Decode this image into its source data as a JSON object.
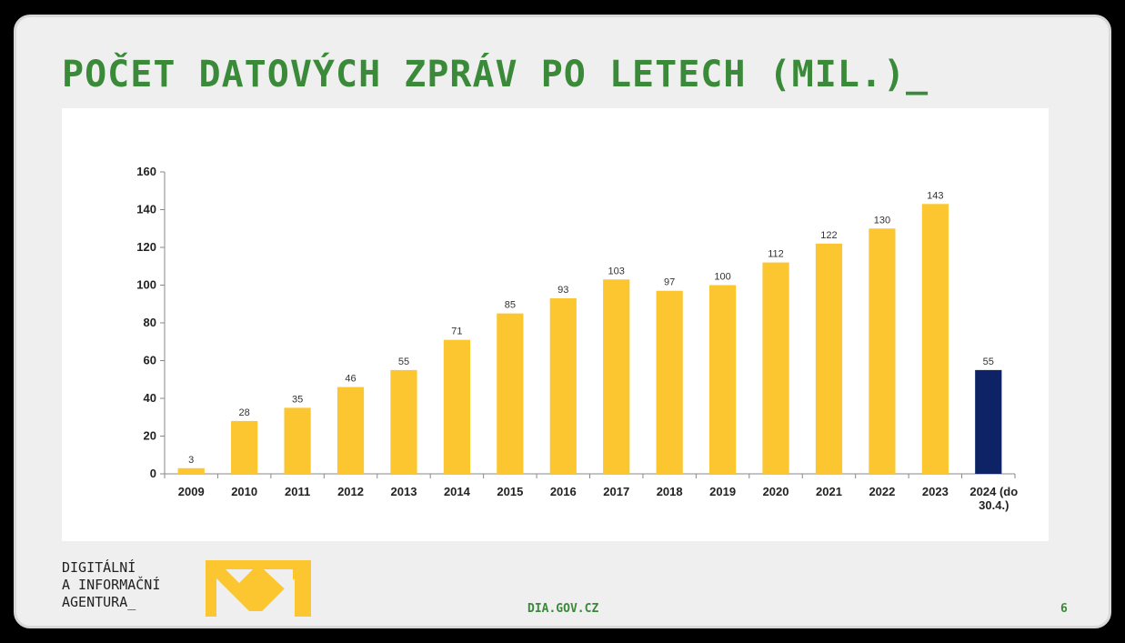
{
  "slide": {
    "title": "POČET DATOVÝCH ZPRÁV PO LETECH (MIL.)_",
    "org_lines": [
      "DIGITÁLNÍ",
      "A INFORMAČNÍ",
      "AGENTURA_"
    ],
    "website": "DIA.GOV.CZ",
    "page_number": "6"
  },
  "colors": {
    "title_green": "#3a8a3a",
    "bar_yellow": "#fcc630",
    "bar_highlight": "#0d2366",
    "logo_yellow": "#fcc630"
  },
  "chart_data": {
    "type": "bar",
    "title": "",
    "xlabel": "",
    "ylabel": "",
    "ylim": [
      0,
      160
    ],
    "yticks": [
      0,
      20,
      40,
      60,
      80,
      100,
      120,
      140,
      160
    ],
    "grid": false,
    "categories": [
      [
        "2009"
      ],
      [
        "2010"
      ],
      [
        "2011"
      ],
      [
        "2012"
      ],
      [
        "2013"
      ],
      [
        "2014"
      ],
      [
        "2015"
      ],
      [
        "2016"
      ],
      [
        "2017"
      ],
      [
        "2018"
      ],
      [
        "2019"
      ],
      [
        "2020"
      ],
      [
        "2021"
      ],
      [
        "2022"
      ],
      [
        "2023"
      ],
      [
        "2024 (do",
        "30.4.)"
      ]
    ],
    "values": [
      3,
      28,
      35,
      46,
      55,
      71,
      85,
      93,
      103,
      97,
      100,
      112,
      122,
      130,
      143,
      55
    ],
    "bar_colors": [
      "#fcc630",
      "#fcc630",
      "#fcc630",
      "#fcc630",
      "#fcc630",
      "#fcc630",
      "#fcc630",
      "#fcc630",
      "#fcc630",
      "#fcc630",
      "#fcc630",
      "#fcc630",
      "#fcc630",
      "#fcc630",
      "#fcc630",
      "#0d2366"
    ]
  }
}
